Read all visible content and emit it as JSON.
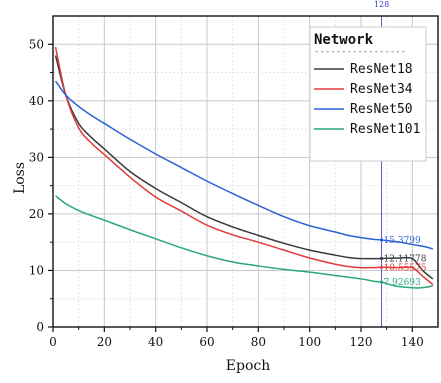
{
  "chart_data": {
    "type": "line",
    "title": "",
    "xlabel": "Epoch",
    "ylabel": "Loss",
    "xlim": [
      0,
      150
    ],
    "ylim": [
      0,
      55
    ],
    "xticks": [
      0,
      20,
      40,
      60,
      80,
      100,
      120,
      140
    ],
    "yticks": [
      0,
      10,
      20,
      30,
      40,
      50
    ],
    "grid": true,
    "legend": {
      "title": "Network",
      "separator": "-----------------",
      "placement": "top-right"
    },
    "marker_line": {
      "x": 128,
      "label": "128",
      "color": "#5a5ad6"
    },
    "series": [
      {
        "name": "ResNet18",
        "color": "#3a3a3a",
        "x": [
          1,
          5,
          10,
          15,
          20,
          30,
          40,
          50,
          60,
          70,
          80,
          90,
          100,
          110,
          115,
          120,
          125,
          128,
          135,
          140,
          144,
          148
        ],
        "y": [
          48,
          41,
          36,
          33.5,
          31.5,
          27.5,
          24.5,
          22,
          19.5,
          17.7,
          16.2,
          14.8,
          13.6,
          12.7,
          12.3,
          12.1,
          12.1,
          12.12,
          12.2,
          12.1,
          10,
          8.5
        ],
        "end_label": "12.11778"
      },
      {
        "name": "ResNet34",
        "color": "#e23a3a",
        "x": [
          1,
          5,
          10,
          15,
          20,
          30,
          40,
          50,
          60,
          70,
          80,
          90,
          100,
          110,
          115,
          120,
          125,
          128,
          135,
          140,
          144,
          148
        ],
        "y": [
          49.5,
          41,
          35.2,
          32.5,
          30.5,
          26.5,
          23,
          20.5,
          18,
          16.3,
          15,
          13.6,
          12.2,
          11.1,
          10.7,
          10.5,
          10.5,
          10.56,
          10.5,
          10.5,
          9,
          7.5
        ],
        "end_label": "10.55575"
      },
      {
        "name": "ResNet50",
        "color": "#2a62d6",
        "x": [
          1,
          5,
          10,
          15,
          20,
          30,
          40,
          50,
          60,
          70,
          80,
          90,
          100,
          110,
          115,
          120,
          125,
          128,
          135,
          140,
          145,
          148
        ],
        "y": [
          43.5,
          41,
          39,
          37.4,
          36,
          33.2,
          30.6,
          28.2,
          25.8,
          23.6,
          21.5,
          19.5,
          17.9,
          16.8,
          16.2,
          15.8,
          15.5,
          15.38,
          15,
          14.6,
          14.2,
          13.8
        ],
        "end_label": "15.3799"
      },
      {
        "name": "ResNet101",
        "color": "#2aa877",
        "x": [
          1,
          5,
          10,
          15,
          20,
          30,
          40,
          50,
          60,
          70,
          80,
          90,
          100,
          110,
          120,
          125,
          128,
          133,
          138,
          142,
          145,
          148
        ],
        "y": [
          23.2,
          21.8,
          20.6,
          19.7,
          18.9,
          17.2,
          15.6,
          14,
          12.6,
          11.5,
          10.8,
          10.2,
          9.7,
          9.1,
          8.5,
          8.1,
          7.93,
          7.3,
          7.0,
          6.9,
          7.0,
          7.3
        ],
        "end_label": "7.92693"
      }
    ]
  }
}
